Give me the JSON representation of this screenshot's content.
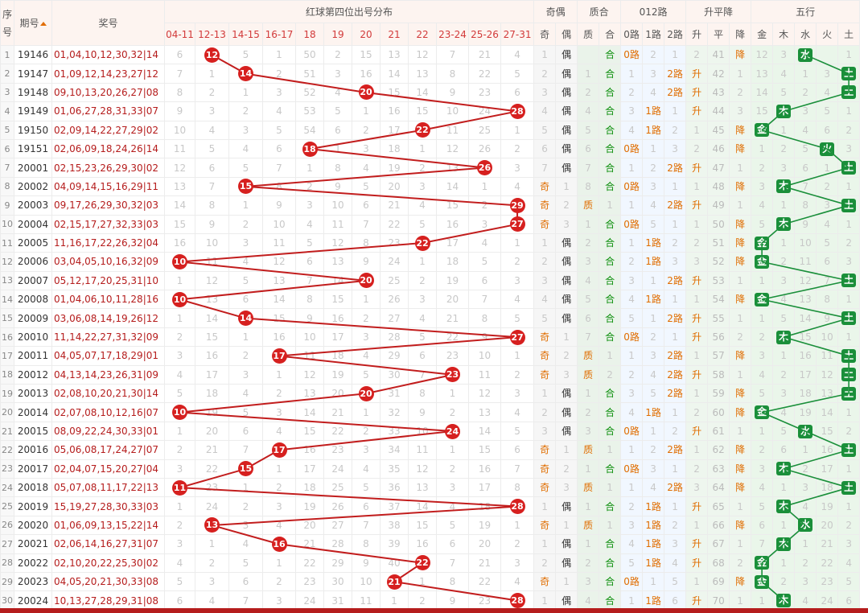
{
  "header": {
    "seq_label": "序号",
    "issue_label": "期号",
    "prize_label": "奖号",
    "red_dist_title": "红球第四位出号分布",
    "jiou_title": "奇偶",
    "zhihe_title": "质合",
    "lu_title": "012路",
    "spj_title": "升平降",
    "wx_title": "五行",
    "red_ranges": [
      "04-11",
      "12-13",
      "14-15",
      "16-17",
      "18",
      "19",
      "20",
      "21",
      "22",
      "23-24",
      "25-26",
      "27-31"
    ],
    "jiou_cols": [
      "奇",
      "偶"
    ],
    "zhihe_cols": [
      "质",
      "合"
    ],
    "lu_cols": [
      "0路",
      "1路",
      "2路"
    ],
    "spj_cols": [
      "升",
      "平",
      "降"
    ],
    "wx_cols": [
      "金",
      "木",
      "水",
      "火",
      "土"
    ]
  },
  "colors": {
    "ball_red": "#d6201f",
    "line_red": "#c21d1d",
    "wx_green": "#1a8f3a"
  },
  "rows": [
    {
      "seq": "1",
      "issue": "19146",
      "prize": "01,04,10,12,30,32|14",
      "ball": 12,
      "col": 1,
      "dist": [
        "6",
        "",
        "5",
        "1",
        "50",
        "2",
        "15",
        "13",
        "12",
        "7",
        "21",
        "4"
      ],
      "jo": [
        "1",
        "偶"
      ],
      "zh": [
        "",
        "合"
      ],
      "lu": [
        "0路",
        "2",
        "1"
      ],
      "spj": [
        "2",
        "41",
        "降"
      ],
      "wx": [
        "12",
        "3",
        "水",
        "",
        "1"
      ],
      "wxc": 2
    },
    {
      "seq": "2",
      "issue": "19147",
      "prize": "01,09,12,14,23,27|12",
      "ball": 14,
      "col": 2,
      "dist": [
        "7",
        "1",
        "",
        "2",
        "51",
        "3",
        "16",
        "14",
        "13",
        "8",
        "22",
        "5"
      ],
      "jo": [
        "2",
        "偶"
      ],
      "zh": [
        "1",
        "合"
      ],
      "lu": [
        "1",
        "3",
        "2路"
      ],
      "spj": [
        "升",
        "42",
        "1"
      ],
      "wx": [
        "13",
        "4",
        "1",
        "3",
        "土"
      ],
      "wxc": 4
    },
    {
      "seq": "3",
      "issue": "19148",
      "prize": "09,10,13,20,26,27|08",
      "ball": 20,
      "col": 6,
      "dist": [
        "8",
        "2",
        "1",
        "3",
        "52",
        "4",
        "",
        "15",
        "14",
        "9",
        "23",
        "6"
      ],
      "jo": [
        "3",
        "偶"
      ],
      "zh": [
        "2",
        "合"
      ],
      "lu": [
        "2",
        "4",
        "2路"
      ],
      "spj": [
        "升",
        "43",
        "2"
      ],
      "wx": [
        "14",
        "5",
        "2",
        "4",
        "土"
      ],
      "wxc": 4
    },
    {
      "seq": "4",
      "issue": "19149",
      "prize": "01,06,27,28,31,33|07",
      "ball": 28,
      "col": 11,
      "dist": [
        "9",
        "3",
        "2",
        "4",
        "53",
        "5",
        "1",
        "16",
        "15",
        "10",
        "24",
        ""
      ],
      "jo": [
        "4",
        "偶"
      ],
      "zh": [
        "4",
        "合"
      ],
      "lu": [
        "3",
        "1路",
        "1"
      ],
      "spj": [
        "升",
        "44",
        "3"
      ],
      "wx": [
        "15",
        "木",
        "3",
        "5",
        "1"
      ],
      "wxc": 1
    },
    {
      "seq": "5",
      "issue": "19150",
      "prize": "02,09,14,22,27,29|02",
      "ball": 22,
      "col": 8,
      "dist": [
        "10",
        "4",
        "3",
        "5",
        "54",
        "6",
        "2",
        "17",
        "",
        "11",
        "25",
        "1"
      ],
      "jo": [
        "5",
        "偶"
      ],
      "zh": [
        "5",
        "合"
      ],
      "lu": [
        "4",
        "1路",
        "2"
      ],
      "spj": [
        "1",
        "45",
        "降"
      ],
      "wx": [
        "金",
        "1",
        "4",
        "6",
        "2"
      ],
      "wxc": 0
    },
    {
      "seq": "6",
      "issue": "19151",
      "prize": "02,06,09,18,24,26|14",
      "ball": 18,
      "col": 4,
      "dist": [
        "11",
        "5",
        "4",
        "6",
        "",
        "1",
        "3",
        "18",
        "1",
        "12",
        "26",
        "2"
      ],
      "jo": [
        "6",
        "偶"
      ],
      "zh": [
        "6",
        "合"
      ],
      "lu": [
        "0路",
        "1",
        "3"
      ],
      "spj": [
        "2",
        "46",
        "降"
      ],
      "wx": [
        "1",
        "2",
        "5",
        "火",
        "3"
      ],
      "wxc": 3
    },
    {
      "seq": "7",
      "issue": "20001",
      "prize": "02,15,23,26,29,30|02",
      "ball": 26,
      "col": 10,
      "dist": [
        "12",
        "6",
        "5",
        "7",
        "1",
        "8",
        "4",
        "19",
        "2",
        "13",
        "",
        "3"
      ],
      "jo": [
        "7",
        "偶"
      ],
      "zh": [
        "7",
        "合"
      ],
      "lu": [
        "1",
        "2",
        "2路"
      ],
      "spj": [
        "升",
        "47",
        "1"
      ],
      "wx": [
        "2",
        "3",
        "6",
        "1",
        "土"
      ],
      "wxc": 4
    },
    {
      "seq": "8",
      "issue": "20002",
      "prize": "04,09,14,15,16,29|11",
      "ball": 15,
      "col": 2,
      "dist": [
        "13",
        "7",
        "",
        "8",
        "2",
        "9",
        "5",
        "20",
        "3",
        "14",
        "1",
        "4"
      ],
      "jo": [
        "奇",
        "1"
      ],
      "zh": [
        "8",
        "合"
      ],
      "lu": [
        "0路",
        "3",
        "1"
      ],
      "spj": [
        "1",
        "48",
        "降"
      ],
      "wx": [
        "3",
        "木",
        "7",
        "2",
        "1"
      ],
      "wxc": 1
    },
    {
      "seq": "9",
      "issue": "20003",
      "prize": "09,17,26,29,30,32|03",
      "ball": 29,
      "col": 11,
      "dist": [
        "14",
        "8",
        "1",
        "9",
        "3",
        "10",
        "6",
        "21",
        "4",
        "15",
        "2",
        ""
      ],
      "jo": [
        "奇",
        "2"
      ],
      "zh": [
        "质",
        "1"
      ],
      "lu": [
        "1",
        "4",
        "2路"
      ],
      "spj": [
        "升",
        "49",
        "1"
      ],
      "wx": [
        "4",
        "1",
        "8",
        "3",
        "土"
      ],
      "wxc": 4
    },
    {
      "seq": "10",
      "issue": "20004",
      "prize": "02,15,17,27,32,33|03",
      "ball": 27,
      "col": 11,
      "dist": [
        "15",
        "9",
        "2",
        "10",
        "4",
        "11",
        "7",
        "22",
        "5",
        "16",
        "3",
        ""
      ],
      "jo": [
        "奇",
        "3"
      ],
      "zh": [
        "1",
        "合"
      ],
      "lu": [
        "0路",
        "5",
        "1"
      ],
      "spj": [
        "1",
        "50",
        "降"
      ],
      "wx": [
        "5",
        "木",
        "9",
        "4",
        "1"
      ],
      "wxc": 1
    },
    {
      "seq": "11",
      "issue": "20005",
      "prize": "11,16,17,22,26,32|04",
      "ball": 22,
      "col": 8,
      "dist": [
        "16",
        "10",
        "3",
        "11",
        "5",
        "12",
        "8",
        "23",
        "",
        "17",
        "4",
        "1"
      ],
      "jo": [
        "1",
        "偶"
      ],
      "zh": [
        "2",
        "合"
      ],
      "lu": [
        "1",
        "1路",
        "2"
      ],
      "spj": [
        "2",
        "51",
        "降"
      ],
      "wx": [
        "金",
        "1",
        "10",
        "5",
        "2"
      ],
      "wxc": 0
    },
    {
      "seq": "12",
      "issue": "20006",
      "prize": "03,04,05,10,16,32|09",
      "ball": 10,
      "col": 0,
      "dist": [
        "",
        "11",
        "4",
        "12",
        "6",
        "13",
        "9",
        "24",
        "1",
        "18",
        "5",
        "2"
      ],
      "jo": [
        "2",
        "偶"
      ],
      "zh": [
        "3",
        "合"
      ],
      "lu": [
        "2",
        "1路",
        "3"
      ],
      "spj": [
        "3",
        "52",
        "降"
      ],
      "wx": [
        "金",
        "2",
        "11",
        "6",
        "3"
      ],
      "wxc": 0
    },
    {
      "seq": "13",
      "issue": "20007",
      "prize": "05,12,17,20,25,31|10",
      "ball": 20,
      "col": 6,
      "dist": [
        "1",
        "12",
        "5",
        "13",
        "7",
        "14",
        "",
        "25",
        "2",
        "19",
        "6",
        "3"
      ],
      "jo": [
        "3",
        "偶"
      ],
      "zh": [
        "4",
        "合"
      ],
      "lu": [
        "3",
        "1",
        "2路"
      ],
      "spj": [
        "升",
        "53",
        "1"
      ],
      "wx": [
        "1",
        "3",
        "12",
        "7",
        "土"
      ],
      "wxc": 4
    },
    {
      "seq": "14",
      "issue": "20008",
      "prize": "01,04,06,10,11,28|16",
      "ball": 10,
      "col": 0,
      "dist": [
        "",
        "13",
        "6",
        "14",
        "8",
        "15",
        "1",
        "26",
        "3",
        "20",
        "7",
        "4"
      ],
      "jo": [
        "4",
        "偶"
      ],
      "zh": [
        "5",
        "合"
      ],
      "lu": [
        "4",
        "1路",
        "1"
      ],
      "spj": [
        "1",
        "54",
        "降"
      ],
      "wx": [
        "金",
        "4",
        "13",
        "8",
        "1"
      ],
      "wxc": 0
    },
    {
      "seq": "15",
      "issue": "20009",
      "prize": "03,06,08,14,19,26|12",
      "ball": 14,
      "col": 2,
      "dist": [
        "1",
        "14",
        "",
        "15",
        "9",
        "16",
        "2",
        "27",
        "4",
        "21",
        "8",
        "5"
      ],
      "jo": [
        "5",
        "偶"
      ],
      "zh": [
        "6",
        "合"
      ],
      "lu": [
        "5",
        "1",
        "2路"
      ],
      "spj": [
        "升",
        "55",
        "1"
      ],
      "wx": [
        "1",
        "5",
        "14",
        "9",
        "土"
      ],
      "wxc": 4
    },
    {
      "seq": "16",
      "issue": "20010",
      "prize": "11,14,22,27,31,32|09",
      "ball": 27,
      "col": 11,
      "dist": [
        "2",
        "15",
        "1",
        "16",
        "10",
        "17",
        "3",
        "28",
        "5",
        "22",
        "9",
        ""
      ],
      "jo": [
        "奇",
        "1"
      ],
      "zh": [
        "7",
        "合"
      ],
      "lu": [
        "0路",
        "2",
        "1"
      ],
      "spj": [
        "升",
        "56",
        "2"
      ],
      "wx": [
        "2",
        "木",
        "15",
        "10",
        "1"
      ],
      "wxc": 1
    },
    {
      "seq": "17",
      "issue": "20011",
      "prize": "04,05,07,17,18,29|01",
      "ball": 17,
      "col": 3,
      "dist": [
        "3",
        "16",
        "2",
        "",
        "11",
        "18",
        "4",
        "29",
        "6",
        "23",
        "10",
        "1"
      ],
      "jo": [
        "奇",
        "2"
      ],
      "zh": [
        "质",
        "1"
      ],
      "lu": [
        "1",
        "3",
        "2路"
      ],
      "spj": [
        "1",
        "57",
        "降"
      ],
      "wx": [
        "3",
        "1",
        "16",
        "11",
        "土"
      ],
      "wxc": 4
    },
    {
      "seq": "18",
      "issue": "20012",
      "prize": "04,13,14,23,26,31|09",
      "ball": 23,
      "col": 9,
      "dist": [
        "4",
        "17",
        "3",
        "1",
        "12",
        "19",
        "5",
        "30",
        "7",
        "",
        "11",
        "2"
      ],
      "jo": [
        "奇",
        "3"
      ],
      "zh": [
        "质",
        "2"
      ],
      "lu": [
        "2",
        "4",
        "2路"
      ],
      "spj": [
        "升",
        "58",
        "1"
      ],
      "wx": [
        "4",
        "2",
        "17",
        "12",
        "土"
      ],
      "wxc": 4
    },
    {
      "seq": "19",
      "issue": "20013",
      "prize": "02,08,10,20,21,30|14",
      "ball": 20,
      "col": 6,
      "dist": [
        "5",
        "18",
        "4",
        "2",
        "13",
        "20",
        "",
        "31",
        "8",
        "1",
        "12",
        "3"
      ],
      "jo": [
        "1",
        "偶"
      ],
      "zh": [
        "1",
        "合"
      ],
      "lu": [
        "3",
        "5",
        "2路"
      ],
      "spj": [
        "1",
        "59",
        "降"
      ],
      "wx": [
        "5",
        "3",
        "18",
        "13",
        "土"
      ],
      "wxc": 4
    },
    {
      "seq": "20",
      "issue": "20014",
      "prize": "02,07,08,10,12,16|07",
      "ball": 10,
      "col": 0,
      "dist": [
        "",
        "19",
        "5",
        "3",
        "14",
        "21",
        "1",
        "32",
        "9",
        "2",
        "13",
        "4"
      ],
      "jo": [
        "2",
        "偶"
      ],
      "zh": [
        "2",
        "合"
      ],
      "lu": [
        "4",
        "1路",
        "1"
      ],
      "spj": [
        "2",
        "60",
        "降"
      ],
      "wx": [
        "金",
        "4",
        "19",
        "14",
        "1"
      ],
      "wxc": 0
    },
    {
      "seq": "21",
      "issue": "20015",
      "prize": "08,09,22,24,30,33|01",
      "ball": 24,
      "col": 9,
      "dist": [
        "1",
        "20",
        "6",
        "4",
        "15",
        "22",
        "2",
        "33",
        "10",
        "",
        "14",
        "5"
      ],
      "jo": [
        "3",
        "偶"
      ],
      "zh": [
        "3",
        "合"
      ],
      "lu": [
        "0路",
        "1",
        "2"
      ],
      "spj": [
        "升",
        "61",
        "1"
      ],
      "wx": [
        "1",
        "5",
        "水",
        "15",
        "2"
      ],
      "wxc": 2
    },
    {
      "seq": "22",
      "issue": "20016",
      "prize": "05,06,08,17,24,27|07",
      "ball": 17,
      "col": 3,
      "dist": [
        "2",
        "21",
        "7",
        "",
        "16",
        "23",
        "3",
        "34",
        "11",
        "1",
        "15",
        "6"
      ],
      "jo": [
        "奇",
        "1"
      ],
      "zh": [
        "质",
        "1"
      ],
      "lu": [
        "1",
        "2",
        "2路"
      ],
      "spj": [
        "1",
        "62",
        "降"
      ],
      "wx": [
        "2",
        "6",
        "1",
        "16",
        "土"
      ],
      "wxc": 4
    },
    {
      "seq": "23",
      "issue": "20017",
      "prize": "02,04,07,15,20,27|04",
      "ball": 15,
      "col": 2,
      "dist": [
        "3",
        "22",
        "",
        "1",
        "17",
        "24",
        "4",
        "35",
        "12",
        "2",
        "16",
        "7"
      ],
      "jo": [
        "奇",
        "2"
      ],
      "zh": [
        "1",
        "合"
      ],
      "lu": [
        "0路",
        "3",
        "1"
      ],
      "spj": [
        "2",
        "63",
        "降"
      ],
      "wx": [
        "3",
        "木",
        "2",
        "17",
        "1"
      ],
      "wxc": 1
    },
    {
      "seq": "24",
      "issue": "20018",
      "prize": "05,07,08,11,17,22|13",
      "ball": 11,
      "col": 0,
      "dist": [
        "",
        "23",
        "1",
        "2",
        "18",
        "25",
        "5",
        "36",
        "13",
        "3",
        "17",
        "8"
      ],
      "jo": [
        "奇",
        "3"
      ],
      "zh": [
        "质",
        "1"
      ],
      "lu": [
        "1",
        "4",
        "2路"
      ],
      "spj": [
        "3",
        "64",
        "降"
      ],
      "wx": [
        "4",
        "1",
        "3",
        "18",
        "土"
      ],
      "wxc": 4
    },
    {
      "seq": "25",
      "issue": "20019",
      "prize": "15,19,27,28,30,33|03",
      "ball": 28,
      "col": 11,
      "dist": [
        "1",
        "24",
        "2",
        "3",
        "19",
        "26",
        "6",
        "37",
        "14",
        "4",
        "18",
        ""
      ],
      "jo": [
        "1",
        "偶"
      ],
      "zh": [
        "1",
        "合"
      ],
      "lu": [
        "2",
        "1路",
        "1"
      ],
      "spj": [
        "升",
        "65",
        "1"
      ],
      "wx": [
        "5",
        "木",
        "4",
        "19",
        "1"
      ],
      "wxc": 1
    },
    {
      "seq": "26",
      "issue": "20020",
      "prize": "01,06,09,13,15,22|14",
      "ball": 13,
      "col": 1,
      "dist": [
        "2",
        "",
        "3",
        "4",
        "20",
        "27",
        "7",
        "38",
        "15",
        "5",
        "19",
        "1"
      ],
      "jo": [
        "奇",
        "1"
      ],
      "zh": [
        "质",
        "1"
      ],
      "lu": [
        "3",
        "1路",
        "2"
      ],
      "spj": [
        "1",
        "66",
        "降"
      ],
      "wx": [
        "6",
        "1",
        "水",
        "20",
        "2"
      ],
      "wxc": 2
    },
    {
      "seq": "27",
      "issue": "20021",
      "prize": "02,06,14,16,27,31|07",
      "ball": 16,
      "col": 3,
      "dist": [
        "3",
        "1",
        "4",
        "",
        "21",
        "28",
        "8",
        "39",
        "16",
        "6",
        "20",
        "2"
      ],
      "jo": [
        "1",
        "偶"
      ],
      "zh": [
        "1",
        "合"
      ],
      "lu": [
        "4",
        "1路",
        "3"
      ],
      "spj": [
        "升",
        "67",
        "1"
      ],
      "wx": [
        "7",
        "木",
        "1",
        "21",
        "3"
      ],
      "wxc": 1
    },
    {
      "seq": "28",
      "issue": "20022",
      "prize": "02,10,20,22,25,30|02",
      "ball": 22,
      "col": 8,
      "dist": [
        "4",
        "2",
        "5",
        "1",
        "22",
        "29",
        "9",
        "40",
        "",
        "7",
        "21",
        "3"
      ],
      "jo": [
        "2",
        "偶"
      ],
      "zh": [
        "2",
        "合"
      ],
      "lu": [
        "5",
        "1路",
        "4"
      ],
      "spj": [
        "升",
        "68",
        "2"
      ],
      "wx": [
        "金",
        "1",
        "2",
        "22",
        "4"
      ],
      "wxc": 0
    },
    {
      "seq": "29",
      "issue": "20023",
      "prize": "04,05,20,21,30,33|08",
      "ball": 21,
      "col": 7,
      "dist": [
        "5",
        "3",
        "6",
        "2",
        "23",
        "30",
        "10",
        "",
        "1",
        "8",
        "22",
        "4"
      ],
      "jo": [
        "奇",
        "1"
      ],
      "zh": [
        "3",
        "合"
      ],
      "lu": [
        "0路",
        "1",
        "5"
      ],
      "spj": [
        "1",
        "69",
        "降"
      ],
      "wx": [
        "金",
        "2",
        "3",
        "23",
        "5"
      ],
      "wxc": 0
    },
    {
      "seq": "30",
      "issue": "20024",
      "prize": "10,13,27,28,29,31|08",
      "ball": 28,
      "col": 11,
      "dist": [
        "6",
        "4",
        "7",
        "3",
        "24",
        "31",
        "11",
        "1",
        "2",
        "9",
        "23",
        ""
      ],
      "jo": [
        "1",
        "偶"
      ],
      "zh": [
        "4",
        "合"
      ],
      "lu": [
        "1",
        "1路",
        "6"
      ],
      "spj": [
        "升",
        "70",
        "1"
      ],
      "wx": [
        "1",
        "木",
        "4",
        "24",
        "6"
      ],
      "wxc": 1
    }
  ]
}
